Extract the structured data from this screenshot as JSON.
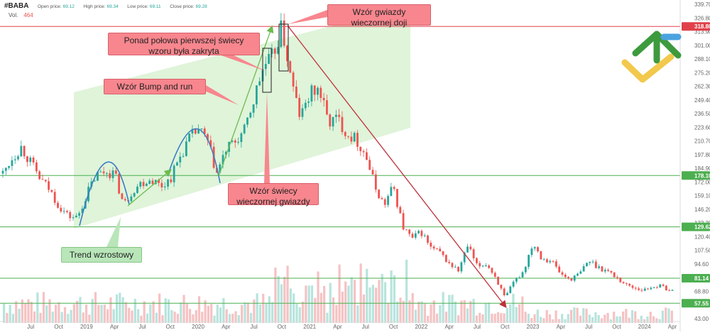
{
  "header": {
    "symbol": "#BABA",
    "open_label": "Open price:",
    "open": "69.12",
    "high_label": "High price:",
    "high": "69.34",
    "low_label": "Low price:",
    "low": "69.11",
    "close_label": "Close price:",
    "close": "69.28",
    "vol_label": "Vol.",
    "vol": "464"
  },
  "annotations": {
    "evening_doji": "Wzór gwiazdy wieczornej doji",
    "half_closed": "Ponad połowa pierwszej świecy wzoru była zakryta",
    "bump_and_run": "Wzór Bump and run",
    "evening_star": "Wzór świecy wieczornej gwiazdy",
    "uptrend": "Trend wzrostowy"
  },
  "chart_data": {
    "type": "candlestick",
    "title": "",
    "y_axis_ticks": [
      339.7,
      326.8,
      313.9,
      301.0,
      288.1,
      275.2,
      262.3,
      249.4,
      236.5,
      223.6,
      210.7,
      197.8,
      184.9,
      172.0,
      159.1,
      146.2,
      133.3,
      120.4,
      107.5,
      94.6,
      81.7,
      68.8,
      55.9,
      43.0
    ],
    "ylim": [
      43.0,
      339.7
    ],
    "x_axis_ticks": [
      "Jul",
      "Oct",
      "2019",
      "Apr",
      "Jul",
      "Oct",
      "2020",
      "Apr",
      "Jul",
      "Oct",
      "2021",
      "Apr",
      "Jul",
      "Oct",
      "2022",
      "Apr",
      "Jul",
      "Oct",
      "2023",
      "Apr",
      "Jul",
      "Oct",
      "2024",
      "Apr"
    ],
    "horizontal_levels": [
      {
        "value": 318.8,
        "label": "318.80",
        "color": "#e0404a"
      },
      {
        "value": 178.1,
        "label": "178.10",
        "color": "#4caf50"
      },
      {
        "value": 129.62,
        "label": "129.62",
        "color": "#4caf50"
      },
      {
        "value": 81.14,
        "label": "81.14",
        "color": "#4caf50"
      },
      {
        "value": 57.55,
        "label": "57.55",
        "color": "#4caf50"
      }
    ],
    "price_path_monthly": [
      {
        "date": "2018-04",
        "close": 180
      },
      {
        "date": "2018-05",
        "close": 195
      },
      {
        "date": "2018-06",
        "close": 205
      },
      {
        "date": "2018-07",
        "close": 190
      },
      {
        "date": "2018-08",
        "close": 175
      },
      {
        "date": "2018-09",
        "close": 165
      },
      {
        "date": "2018-10",
        "close": 150
      },
      {
        "date": "2018-11",
        "close": 140
      },
      {
        "date": "2018-12",
        "close": 138
      },
      {
        "date": "2019-01",
        "close": 160
      },
      {
        "date": "2019-02",
        "close": 178
      },
      {
        "date": "2019-03",
        "close": 182
      },
      {
        "date": "2019-04",
        "close": 180
      },
      {
        "date": "2019-05",
        "close": 150
      },
      {
        "date": "2019-06",
        "close": 165
      },
      {
        "date": "2019-07",
        "close": 172
      },
      {
        "date": "2019-08",
        "close": 175
      },
      {
        "date": "2019-09",
        "close": 168
      },
      {
        "date": "2019-10",
        "close": 175
      },
      {
        "date": "2019-11",
        "close": 195
      },
      {
        "date": "2019-12",
        "close": 212
      },
      {
        "date": "2020-01",
        "close": 222
      },
      {
        "date": "2020-02",
        "close": 210
      },
      {
        "date": "2020-03",
        "close": 180
      },
      {
        "date": "2020-04",
        "close": 202
      },
      {
        "date": "2020-05",
        "close": 210
      },
      {
        "date": "2020-06",
        "close": 220
      },
      {
        "date": "2020-07",
        "close": 250
      },
      {
        "date": "2020-08",
        "close": 280
      },
      {
        "date": "2020-09",
        "close": 290
      },
      {
        "date": "2020-10",
        "close": 318
      },
      {
        "date": "2020-11",
        "close": 268
      },
      {
        "date": "2020-12",
        "close": 232
      },
      {
        "date": "2021-01",
        "close": 255
      },
      {
        "date": "2021-02",
        "close": 260
      },
      {
        "date": "2021-03",
        "close": 228
      },
      {
        "date": "2021-04",
        "close": 232
      },
      {
        "date": "2021-05",
        "close": 218
      },
      {
        "date": "2021-06",
        "close": 212
      },
      {
        "date": "2021-07",
        "close": 198
      },
      {
        "date": "2021-08",
        "close": 168
      },
      {
        "date": "2021-09",
        "close": 150
      },
      {
        "date": "2021-10",
        "close": 168
      },
      {
        "date": "2021-11",
        "close": 130
      },
      {
        "date": "2021-12",
        "close": 118
      },
      {
        "date": "2022-01",
        "close": 125
      },
      {
        "date": "2022-02",
        "close": 110
      },
      {
        "date": "2022-03",
        "close": 105
      },
      {
        "date": "2022-04",
        "close": 95
      },
      {
        "date": "2022-05",
        "close": 88
      },
      {
        "date": "2022-06",
        "close": 112
      },
      {
        "date": "2022-07",
        "close": 92
      },
      {
        "date": "2022-08",
        "close": 95
      },
      {
        "date": "2022-09",
        "close": 82
      },
      {
        "date": "2022-10",
        "close": 62
      },
      {
        "date": "2022-11",
        "close": 78
      },
      {
        "date": "2022-12",
        "close": 88
      },
      {
        "date": "2023-01",
        "close": 115
      },
      {
        "date": "2023-02",
        "close": 100
      },
      {
        "date": "2023-03",
        "close": 98
      },
      {
        "date": "2023-04",
        "close": 85
      },
      {
        "date": "2023-05",
        "close": 80
      },
      {
        "date": "2023-06",
        "close": 85
      },
      {
        "date": "2023-07",
        "close": 98
      },
      {
        "date": "2023-08",
        "close": 92
      },
      {
        "date": "2023-09",
        "close": 88
      },
      {
        "date": "2023-10",
        "close": 82
      },
      {
        "date": "2023-11",
        "close": 75
      },
      {
        "date": "2023-12",
        "close": 72
      },
      {
        "date": "2024-01",
        "close": 70
      },
      {
        "date": "2024-02",
        "close": 74
      },
      {
        "date": "2024-03",
        "close": 73
      },
      {
        "date": "2024-04",
        "close": 69
      }
    ]
  },
  "colors": {
    "bull": "#26a69a",
    "bear": "#ef5350",
    "channel": "#d9f2d2",
    "trend_arrow": "#6dbb4f",
    "down_arrow": "#c0303a",
    "arc": "#3a7cc4"
  }
}
